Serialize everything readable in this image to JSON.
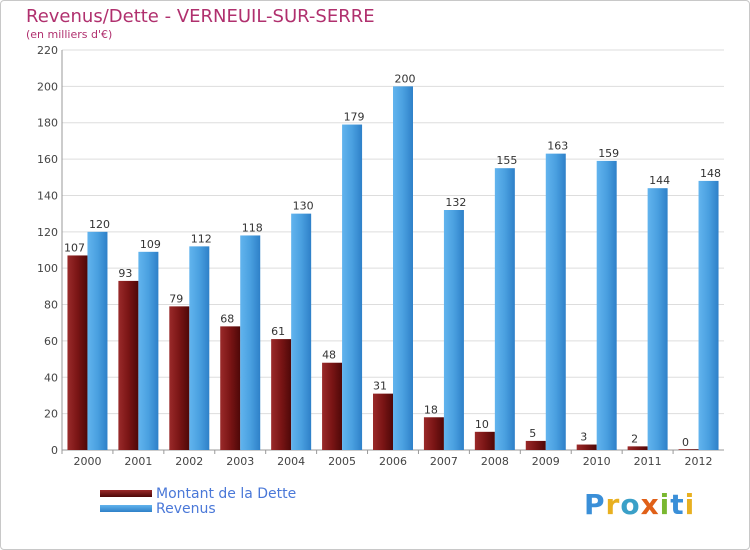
{
  "title": "Revenus/Dette - VERNEUIL-SUR-SERRE",
  "subtitle": "(en milliers d'€)",
  "logo_text": "Proxiti",
  "colors": {
    "dette": "#7a1515",
    "revenus": "#4aa0e0",
    "title": "#b0306e",
    "legend_text": "#4a78d8"
  },
  "chart_data": {
    "type": "bar",
    "categories": [
      "2000",
      "2001",
      "2002",
      "2003",
      "2004",
      "2005",
      "2006",
      "2007",
      "2008",
      "2009",
      "2010",
      "2011",
      "2012"
    ],
    "series": [
      {
        "name": "Montant de la Dette",
        "values": [
          107,
          93,
          79,
          68,
          61,
          48,
          31,
          18,
          10,
          5,
          3,
          2,
          0
        ]
      },
      {
        "name": "Revenus",
        "values": [
          120,
          109,
          112,
          118,
          130,
          179,
          200,
          132,
          155,
          163,
          159,
          144,
          148
        ]
      }
    ],
    "ylim": [
      0,
      220
    ],
    "yticks": [
      0,
      20,
      40,
      60,
      80,
      100,
      120,
      140,
      160,
      180,
      200,
      220
    ],
    "grid": true,
    "legend": "bottom-left"
  }
}
